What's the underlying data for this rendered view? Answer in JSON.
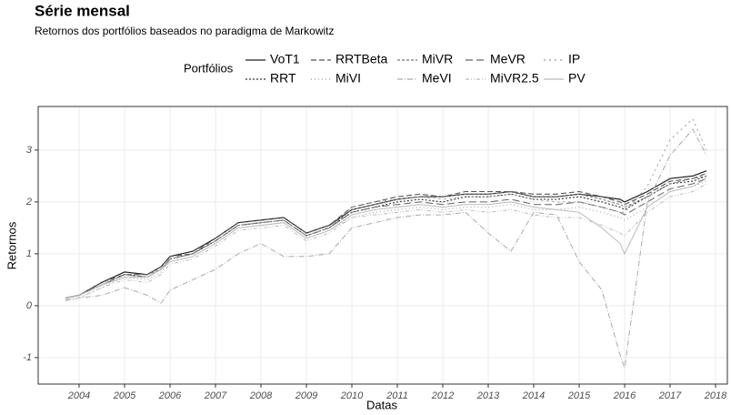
{
  "chart_data": {
    "type": "line",
    "title": "Série mensal",
    "subtitle": "Retornos dos portfólios baseados no paradigma de Markowitz",
    "legend_title": "Portfólios",
    "x_label": "Datas",
    "y_label": "Retornos",
    "x": [
      2003.7,
      2004,
      2004.5,
      2005,
      2005.5,
      2005.8,
      2006,
      2006.5,
      2007,
      2007.5,
      2008,
      2008.5,
      2009,
      2009.5,
      2010,
      2010.5,
      2011,
      2011.5,
      2012,
      2012.5,
      2013,
      2013.5,
      2014,
      2014.5,
      2015,
      2015.5,
      2015.9,
      2016,
      2016.5,
      2017,
      2017.5,
      2017.8
    ],
    "xlim": [
      2003.1,
      2018.26
    ],
    "xticks": [
      2004,
      2005,
      2006,
      2007,
      2008,
      2009,
      2010,
      2011,
      2012,
      2013,
      2014,
      2015,
      2016,
      2017,
      2018
    ],
    "ylim": [
      -1.51,
      3.84
    ],
    "yticks": [
      -1,
      0,
      1,
      2,
      3
    ],
    "grid": true,
    "series": [
      {
        "name": "VoT1",
        "color": "#222222",
        "values": [
          0.15,
          0.2,
          0.45,
          0.65,
          0.6,
          0.75,
          0.95,
          1.05,
          1.3,
          1.6,
          1.65,
          1.7,
          1.4,
          1.55,
          1.85,
          1.95,
          2.05,
          2.1,
          2.1,
          2.15,
          2.15,
          2.2,
          2.1,
          2.1,
          2.15,
          2.1,
          2.05,
          2.0,
          2.2,
          2.45,
          2.5,
          2.6
        ]
      },
      {
        "name": "RRT",
        "color": "#333333",
        "values": [
          0.15,
          0.2,
          0.4,
          0.6,
          0.55,
          0.7,
          0.9,
          1.0,
          1.25,
          1.55,
          1.6,
          1.65,
          1.35,
          1.5,
          1.8,
          1.9,
          2.0,
          2.05,
          2.0,
          2.1,
          2.1,
          2.15,
          2.05,
          2.05,
          2.1,
          2.0,
          1.9,
          1.85,
          2.1,
          2.35,
          2.4,
          2.5
        ]
      },
      {
        "name": "RRTBeta",
        "color": "#555555",
        "values": [
          0.15,
          0.2,
          0.45,
          0.6,
          0.6,
          0.75,
          0.95,
          1.0,
          1.3,
          1.6,
          1.65,
          1.7,
          1.4,
          1.55,
          1.9,
          2.0,
          2.1,
          2.15,
          2.1,
          2.2,
          2.2,
          2.2,
          2.15,
          2.15,
          2.2,
          2.1,
          2.0,
          1.95,
          2.15,
          2.4,
          2.45,
          2.55
        ]
      },
      {
        "name": "MiVI",
        "color": "#999999",
        "values": [
          0.1,
          0.15,
          0.35,
          0.55,
          0.5,
          0.65,
          0.85,
          0.95,
          1.2,
          1.5,
          1.55,
          1.6,
          1.3,
          1.45,
          1.7,
          1.8,
          1.85,
          1.9,
          1.85,
          1.9,
          1.9,
          1.95,
          1.85,
          1.85,
          1.9,
          1.8,
          1.7,
          1.65,
          1.9,
          2.2,
          2.3,
          2.4
        ]
      },
      {
        "name": "MiVR",
        "color": "#777777",
        "values": [
          0.15,
          0.2,
          0.4,
          0.6,
          0.6,
          0.7,
          0.9,
          1.0,
          1.25,
          1.55,
          1.6,
          1.65,
          1.35,
          1.5,
          1.85,
          1.95,
          2.05,
          2.1,
          2.1,
          2.15,
          2.15,
          2.2,
          2.1,
          2.1,
          2.15,
          2.05,
          1.95,
          1.9,
          2.1,
          2.35,
          2.45,
          2.5
        ]
      },
      {
        "name": "MeVI",
        "color": "#aaaaaa",
        "values": [
          0.1,
          0.15,
          0.2,
          0.35,
          0.2,
          0.05,
          0.3,
          0.5,
          0.7,
          1.0,
          1.2,
          0.95,
          0.95,
          1.0,
          1.5,
          1.6,
          1.7,
          1.75,
          1.75,
          1.8,
          1.4,
          1.05,
          1.8,
          1.75,
          0.85,
          0.3,
          -0.95,
          -1.2,
          2.0,
          2.9,
          3.4,
          2.9
        ]
      },
      {
        "name": "MeVR",
        "color": "#666666",
        "values": [
          0.15,
          0.2,
          0.4,
          0.6,
          0.55,
          0.7,
          0.9,
          1.0,
          1.25,
          1.55,
          1.6,
          1.65,
          1.35,
          1.5,
          1.8,
          1.9,
          1.95,
          2.0,
          1.95,
          2.0,
          2.0,
          2.05,
          1.95,
          1.95,
          2.0,
          1.9,
          1.8,
          1.75,
          2.0,
          2.25,
          2.35,
          2.45
        ]
      },
      {
        "name": "MiVR2.5",
        "color": "#bbbbbb",
        "values": [
          0.12,
          0.15,
          0.35,
          0.5,
          0.45,
          0.6,
          0.8,
          0.9,
          1.15,
          1.45,
          1.5,
          1.55,
          1.25,
          1.4,
          1.7,
          1.75,
          1.8,
          1.85,
          1.8,
          1.85,
          1.8,
          1.85,
          1.75,
          1.7,
          1.7,
          1.55,
          1.4,
          1.35,
          1.8,
          2.1,
          2.2,
          2.35
        ]
      },
      {
        "name": "IP",
        "color": "#999999",
        "values": [
          0.15,
          0.2,
          0.4,
          0.6,
          0.55,
          0.7,
          0.9,
          1.0,
          1.25,
          1.55,
          1.6,
          1.65,
          1.35,
          1.5,
          1.9,
          2.0,
          2.05,
          2.1,
          2.05,
          2.1,
          2.1,
          2.15,
          2.05,
          2.0,
          2.0,
          1.9,
          1.8,
          1.8,
          2.3,
          3.2,
          3.6,
          3.0
        ]
      },
      {
        "name": "PV",
        "color": "#bbbbbb",
        "values": [
          0.15,
          0.2,
          0.4,
          0.55,
          0.55,
          0.7,
          0.85,
          0.95,
          1.2,
          1.5,
          1.55,
          1.6,
          1.3,
          1.45,
          1.75,
          1.85,
          1.9,
          1.95,
          1.9,
          1.95,
          1.95,
          2.0,
          1.9,
          1.85,
          1.8,
          1.5,
          1.2,
          1.0,
          1.9,
          2.2,
          2.3,
          2.45
        ]
      }
    ]
  }
}
